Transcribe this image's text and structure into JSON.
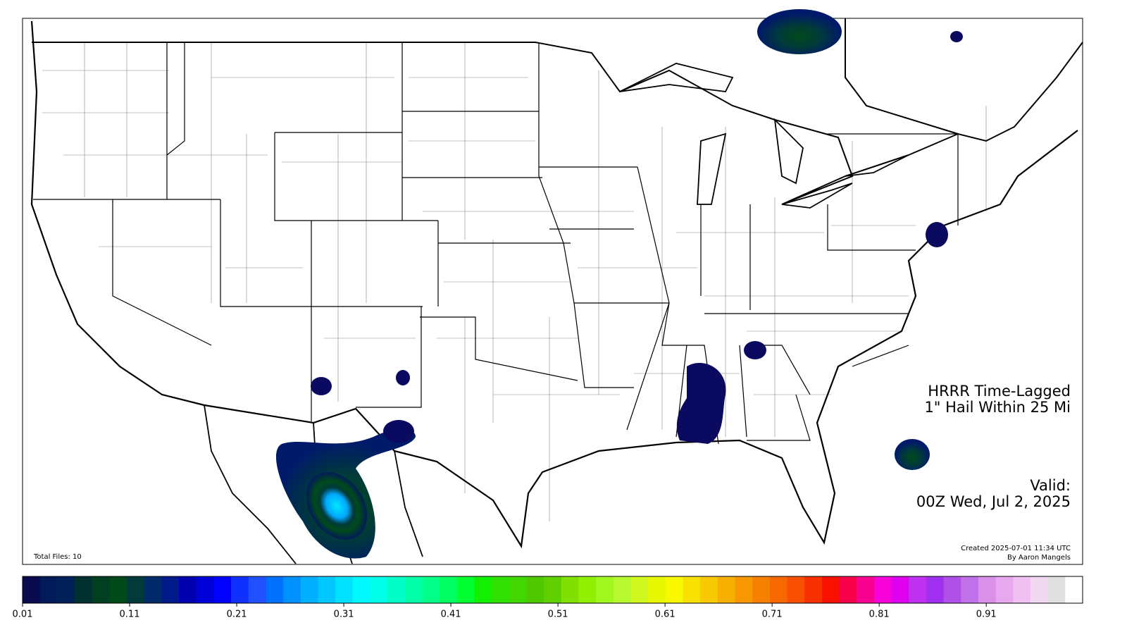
{
  "map_title": [
    "HRRR Time-Lagged",
    "1\" Hail Within 25 Mi"
  ],
  "valid": [
    "Valid:",
    "00Z Wed, Jul 2, 2025"
  ],
  "total_files": "Total Files: 10",
  "credits": [
    "Created 2025-07-01 11:34 UTC",
    "By Aaron Mangels"
  ],
  "colorbar": {
    "lim": [
      0.01,
      1.0
    ],
    "ticks": [
      0.01,
      0.11,
      0.21,
      0.31,
      0.41,
      0.51,
      0.61,
      0.71,
      0.81,
      0.91
    ],
    "colors": [
      "#0a0a50",
      "#001a5a",
      "#00205a",
      "#003030",
      "#004020",
      "#004a1a",
      "#003a3a",
      "#002a6a",
      "#001a8a",
      "#0000b0",
      "#0000d8",
      "#0000ff",
      "#1030ff",
      "#2050ff",
      "#0070ff",
      "#0090ff",
      "#00b0ff",
      "#00c8ff",
      "#00e0ff",
      "#00f8ff",
      "#00ffe8",
      "#00ffc8",
      "#00ffa8",
      "#00ff88",
      "#00ff60",
      "#00ff30",
      "#10f000",
      "#30e000",
      "#40d800",
      "#50c800",
      "#60d000",
      "#80e000",
      "#90f000",
      "#a0f820",
      "#b8f830",
      "#d0f820",
      "#e8f800",
      "#f8f800",
      "#f8e000",
      "#f8c800",
      "#f8b000",
      "#f89800",
      "#f88000",
      "#f86800",
      "#f85000",
      "#f83000",
      "#f81000",
      "#f8004a",
      "#f80090",
      "#f800d8",
      "#e000f0",
      "#c030f0",
      "#a030f0",
      "#b050e8",
      "#c070e8",
      "#d890e8",
      "#e8a8f0",
      "#f0c0f0",
      "#f0d8f0",
      "#e0e0e0",
      "#ffffff"
    ]
  }
}
